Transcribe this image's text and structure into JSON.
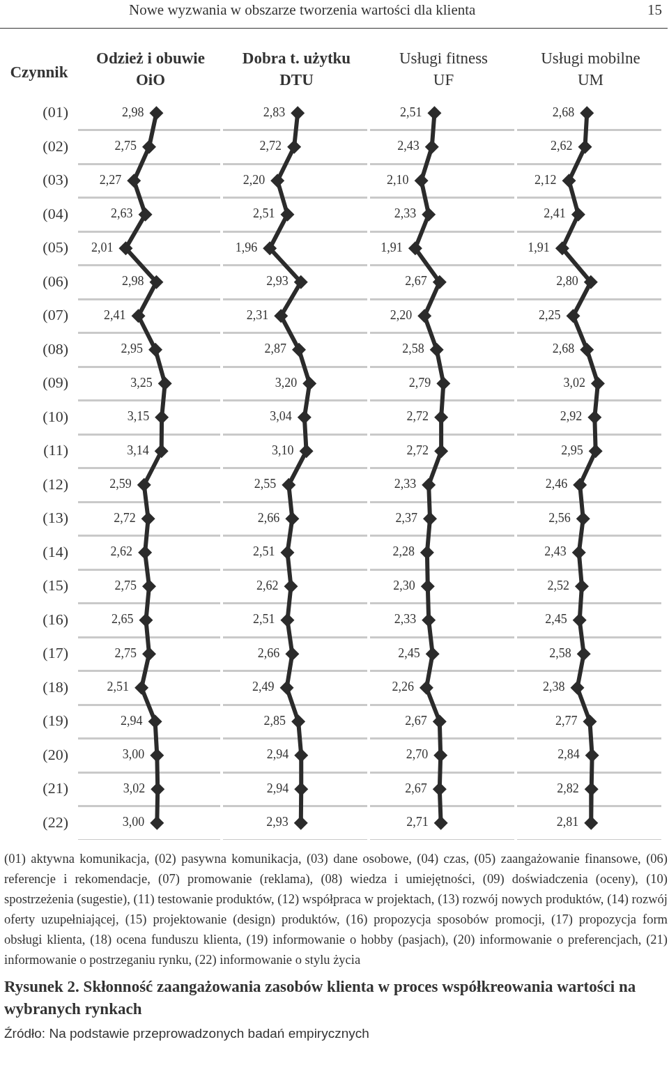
{
  "chart_data": [
    {
      "type": "line",
      "orientation": "horizontal",
      "title": "Odzież i obuwie\nOiO",
      "ylabel": "Czynnik",
      "categories": [
        "(01)",
        "(02)",
        "(03)",
        "(04)",
        "(05)",
        "(06)",
        "(07)",
        "(08)",
        "(09)",
        "(10)",
        "(11)",
        "(12)",
        "(13)",
        "(14)",
        "(15)",
        "(16)",
        "(17)",
        "(18)",
        "(19)",
        "(20)",
        "(21)",
        "(22)"
      ],
      "series": [
        {
          "color": "#2b2b2b",
          "values": [
            2.98,
            2.75,
            2.27,
            2.63,
            2.01,
            2.98,
            2.41,
            2.95,
            3.25,
            3.15,
            3.14,
            2.59,
            2.72,
            2.62,
            2.75,
            2.65,
            2.75,
            2.51,
            2.94,
            3.0,
            3.02,
            3.0
          ],
          "value_labels": [
            "2,98",
            "2,75",
            "2,27",
            "2,63",
            "2,01",
            "2,98",
            "2,41",
            "2,95",
            "3,25",
            "3,15",
            "3,14",
            "2,59",
            "2,72",
            "2,62",
            "2,75",
            "2,65",
            "2,75",
            "2,51",
            "2,94",
            "3,00",
            "3,02",
            "3,00"
          ]
        }
      ],
      "xlim": [
        0.5,
        5
      ],
      "grid": "y",
      "marker": "diamond",
      "tick_labels": "y",
      "annotations": [
        "Nowe wyzwania w obszarze tworzenia wartości dla klienta",
        "15",
        "(01) aktywna komunikacja, (02) pasywna komunikacja, (03) dane osobowe, (04) czas, (05) zaangażowanie finansowe, (06) referencje i rekomendacje, (07) promowanie (reklama), (08) wiedza i umiejętności, (09) doświadczenia (oceny), (10) spostrzeżenia (sugestie), (11) testowanie produktów, (12) współpraca w projektach, (13) rozwój nowych produktów, (14) rozwój oferty uzupełniającej, (15) projektowanie (design) produktów, (16) propozycja sposobów promocji, (17) propozycja form obsługi klienta, (18) ocena funduszu klienta, (19) informowanie o hobby (pasjach), (20) informowanie o preferencjach, (21) informowanie o postrzeganiu rynku, (22) informowanie o stylu życia",
        "Rysunek 2. Skłonność zaangażowania zasobów klienta w proces współkreowania wartości na wybranych rynkach",
        "Źródło: Na podstawie przeprowadzonych badań empirycznych"
      ]
    },
    {
      "type": "line",
      "orientation": "horizontal",
      "title": "Dobra t. użytku\nDTU",
      "categories": [
        null,
        null,
        null,
        null,
        null,
        null,
        null,
        null,
        null,
        null,
        null,
        null,
        null,
        null,
        null,
        null,
        null,
        null,
        null,
        null,
        null,
        null
      ],
      "series": [
        {
          "color": "#2b2b2b",
          "values": [
            2.83,
            2.72,
            2.2,
            2.51,
            1.96,
            2.93,
            2.31,
            2.87,
            3.2,
            3.04,
            3.1,
            2.55,
            2.66,
            2.51,
            2.62,
            2.51,
            2.66,
            2.49,
            2.85,
            2.94,
            2.94,
            2.93
          ],
          "value_labels": [
            "2,83",
            "2,72",
            "2,20",
            "2,51",
            "1,96",
            "2,93",
            "2,31",
            "2,87",
            "3,20",
            "3,04",
            "3,10",
            "2,55",
            "2,66",
            "2,51",
            "2,62",
            "2,51",
            "2,66",
            "2,49",
            "2,85",
            "2,94",
            "2,94",
            "2,93"
          ]
        }
      ],
      "xlim": [
        0.5,
        5
      ],
      "grid": "y",
      "marker": "diamond",
      "tick_labels": false
    },
    {
      "type": "line",
      "orientation": "horizontal",
      "title": "Usługi fitness\nUF",
      "categories": [
        null,
        null,
        null,
        null,
        null,
        null,
        null,
        null,
        null,
        null,
        null,
        null,
        null,
        null,
        null,
        null,
        null,
        null,
        null,
        null,
        null,
        null
      ],
      "series": [
        {
          "color": "#2b2b2b",
          "values": [
            2.51,
            2.43,
            2.1,
            2.33,
            1.91,
            2.67,
            2.2,
            2.58,
            2.79,
            2.72,
            2.72,
            2.33,
            2.37,
            2.28,
            2.3,
            2.33,
            2.45,
            2.26,
            2.67,
            2.7,
            2.67,
            2.71
          ],
          "value_labels": [
            "2,51",
            "2,43",
            "2,10",
            "2,33",
            "1,91",
            "2,67",
            "2,20",
            "2,58",
            "2,79",
            "2,72",
            "2,72",
            "2,33",
            "2,37",
            "2,28",
            "2,30",
            "2,33",
            "2,45",
            "2,26",
            "2,67",
            "2,70",
            "2,67",
            "2,71"
          ]
        }
      ],
      "xlim": [
        0.5,
        5
      ],
      "grid": "y",
      "marker": "diamond",
      "tick_labels": false
    },
    {
      "type": "line",
      "orientation": "horizontal",
      "title": "Usługi mobilne\nUM",
      "categories": [
        null,
        null,
        null,
        null,
        null,
        null,
        null,
        null,
        null,
        null,
        null,
        null,
        null,
        null,
        null,
        null,
        null,
        null,
        null,
        null,
        null,
        null
      ],
      "series": [
        {
          "color": "#2b2b2b",
          "values": [
            2.68,
            2.62,
            2.12,
            2.41,
            1.91,
            2.8,
            2.25,
            2.68,
            3.02,
            2.92,
            2.95,
            2.46,
            2.56,
            2.43,
            2.52,
            2.45,
            2.58,
            2.38,
            2.77,
            2.84,
            2.82,
            2.81
          ],
          "value_labels": [
            "2,68",
            "2,62",
            "2,12",
            "2,41",
            "1,91",
            "2,80",
            "2,25",
            "2,68",
            "3,02",
            "2,92",
            "2,95",
            "2,46",
            "2,56",
            "2,43",
            "2,52",
            "2,45",
            "2,58",
            "2,38",
            "2,77",
            "2,84",
            "2,82",
            "2,81"
          ]
        }
      ],
      "xlim": [
        0.5,
        5
      ],
      "grid": "y",
      "marker": "diamond",
      "tick_labels": false
    }
  ]
}
